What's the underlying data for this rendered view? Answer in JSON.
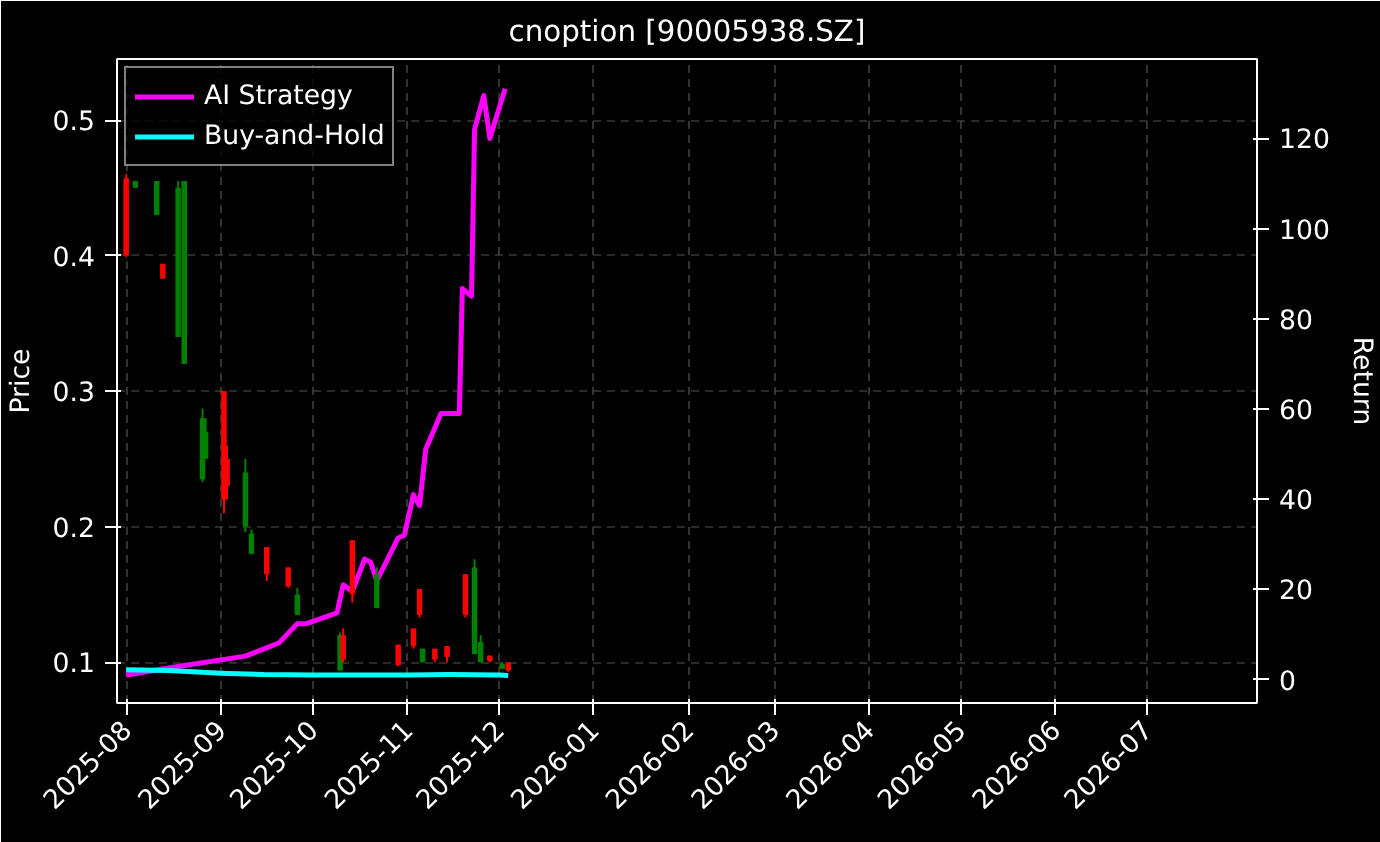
{
  "chart_data": {
    "type": "candlestick",
    "title": "cnoption [90005938.SZ]",
    "ylabel": "Price",
    "y2label": "Return",
    "x": [
      "2025-08-01",
      "2025-08-04",
      "2025-08-11",
      "2025-08-13",
      "2025-08-18",
      "2025-08-20",
      "2025-08-26",
      "2025-08-27",
      "2025-09-02",
      "2025-09-03",
      "2025-09-09",
      "2025-09-11",
      "2025-09-16",
      "2025-09-23",
      "2025-09-26",
      "2025-10-10",
      "2025-10-11",
      "2025-10-14",
      "2025-10-22",
      "2025-10-29",
      "2025-11-03",
      "2025-11-05",
      "2025-11-06",
      "2025-11-10",
      "2025-11-14",
      "2025-11-20",
      "2025-11-23",
      "2025-11-25",
      "2025-11-28",
      "2025-12-02",
      "2025-12-04"
    ],
    "ohlc": [
      [
        0.457,
        0.46,
        0.399,
        0.4
      ],
      [
        0.45,
        0.455,
        0.45,
        0.455
      ],
      [
        0.43,
        0.455,
        0.43,
        0.455
      ],
      [
        0.394,
        0.394,
        0.383,
        0.383
      ],
      [
        0.34,
        0.455,
        0.34,
        0.45
      ],
      [
        0.32,
        0.455,
        0.32,
        0.455
      ],
      [
        0.235,
        0.287,
        0.233,
        0.28
      ],
      [
        0.25,
        0.28,
        0.25,
        0.27
      ],
      [
        0.3,
        0.3,
        0.21,
        0.22
      ],
      [
        0.25,
        0.26,
        0.22,
        0.23
      ],
      [
        0.2,
        0.25,
        0.196,
        0.24
      ],
      [
        0.18,
        0.198,
        0.18,
        0.195
      ],
      [
        0.185,
        0.185,
        0.16,
        0.165
      ],
      [
        0.17,
        0.17,
        0.155,
        0.156
      ],
      [
        0.135,
        0.155,
        0.135,
        0.15
      ],
      [
        0.094,
        0.122,
        0.094,
        0.12
      ],
      [
        0.12,
        0.125,
        0.1,
        0.102
      ],
      [
        0.19,
        0.19,
        0.144,
        0.15
      ],
      [
        0.14,
        0.17,
        0.14,
        0.165
      ],
      [
        0.113,
        0.113,
        0.097,
        0.098
      ],
      [
        0.125,
        0.125,
        0.11,
        0.112
      ],
      [
        0.154,
        0.154,
        0.133,
        0.135
      ],
      [
        0.1,
        0.11,
        0.1,
        0.11
      ],
      [
        0.11,
        0.11,
        0.1,
        0.102
      ],
      [
        0.112,
        0.112,
        0.1,
        0.104
      ],
      [
        0.165,
        0.165,
        0.133,
        0.135
      ],
      [
        0.106,
        0.176,
        0.106,
        0.17
      ],
      [
        0.1,
        0.12,
        0.1,
        0.115
      ],
      [
        0.105,
        0.105,
        0.1,
        0.101
      ],
      [
        0.095,
        0.1,
        0.095,
        0.099
      ],
      [
        0.1,
        0.1,
        0.093,
        0.094
      ]
    ],
    "colors": [
      "#ff0000",
      "#008000",
      "#008000",
      "#ff0000",
      "#008000",
      "#008000",
      "#008000",
      "#008000",
      "#ff0000",
      "#ff0000",
      "#008000",
      "#008000",
      "#ff0000",
      "#ff0000",
      "#008000",
      "#008000",
      "#ff0000",
      "#ff0000",
      "#008000",
      "#ff0000",
      "#ff0000",
      "#ff0000",
      "#008000",
      "#ff0000",
      "#ff0000",
      "#ff0000",
      "#008000",
      "#008000",
      "#ff0000",
      "#008000",
      "#ff0000"
    ],
    "series": [
      {
        "name": "AI Strategy",
        "type": "line",
        "axis": "y2",
        "color": "#ff00ff",
        "x": [
          "2025-08-01",
          "2025-08-18",
          "2025-09-09",
          "2025-09-20",
          "2025-09-26",
          "2025-09-29",
          "2025-10-09",
          "2025-10-11",
          "2025-10-14",
          "2025-10-18",
          "2025-10-20",
          "2025-10-22",
          "2025-10-29",
          "2025-10-31",
          "2025-11-03",
          "2025-11-05",
          "2025-11-07",
          "2025-11-12",
          "2025-11-18",
          "2025-11-19",
          "2025-11-22",
          "2025-11-23",
          "2025-11-26",
          "2025-11-28",
          "2025-12-03"
        ],
        "values": [
          1,
          2.9,
          5.2,
          8.1,
          12.4,
          12.4,
          14.8,
          21,
          19.5,
          26.7,
          26,
          21.9,
          31.4,
          32,
          41,
          38.6,
          51,
          59,
          59,
          86.7,
          85,
          122,
          129.5,
          120,
          131
        ]
      },
      {
        "name": "Buy-and-Hold",
        "type": "line",
        "axis": "y2",
        "color": "#00ffff",
        "x": [
          "2025-08-01",
          "2025-08-15",
          "2025-09-01",
          "2025-09-15",
          "2025-10-01",
          "2025-10-15",
          "2025-11-01",
          "2025-11-15",
          "2025-12-01",
          "2025-12-04"
        ],
        "values": [
          2.2,
          2.0,
          1.4,
          1.1,
          1.0,
          1.0,
          1.0,
          1.1,
          1.0,
          0.9
        ]
      }
    ],
    "xlim": [
      "2025-07-29",
      "2026-08-06"
    ],
    "xticks": [
      {
        "value": "2025-08-01",
        "label": "2025-08"
      },
      {
        "value": "2025-09-01",
        "label": "2025-09"
      },
      {
        "value": "2025-10-01",
        "label": "2025-10"
      },
      {
        "value": "2025-11-01",
        "label": "2025-11"
      },
      {
        "value": "2025-12-01",
        "label": "2025-12"
      },
      {
        "value": "2026-01-01",
        "label": "2026-01"
      },
      {
        "value": "2026-02-01",
        "label": "2026-02"
      },
      {
        "value": "2026-03-01",
        "label": "2026-03"
      },
      {
        "value": "2026-04-01",
        "label": "2026-04"
      },
      {
        "value": "2026-05-01",
        "label": "2026-05"
      },
      {
        "value": "2026-06-01",
        "label": "2026-06"
      },
      {
        "value": "2026-07-01",
        "label": "2026-07"
      }
    ],
    "ylim": [
      0.07,
      0.545
    ],
    "yticks": [
      0.1,
      0.2,
      0.3,
      0.4,
      0.5
    ],
    "y2lim": [
      -5.2,
      137.6
    ],
    "y2ticks": [
      0,
      20,
      40,
      60,
      80,
      100,
      120
    ],
    "grid": true,
    "legend": "top left"
  }
}
